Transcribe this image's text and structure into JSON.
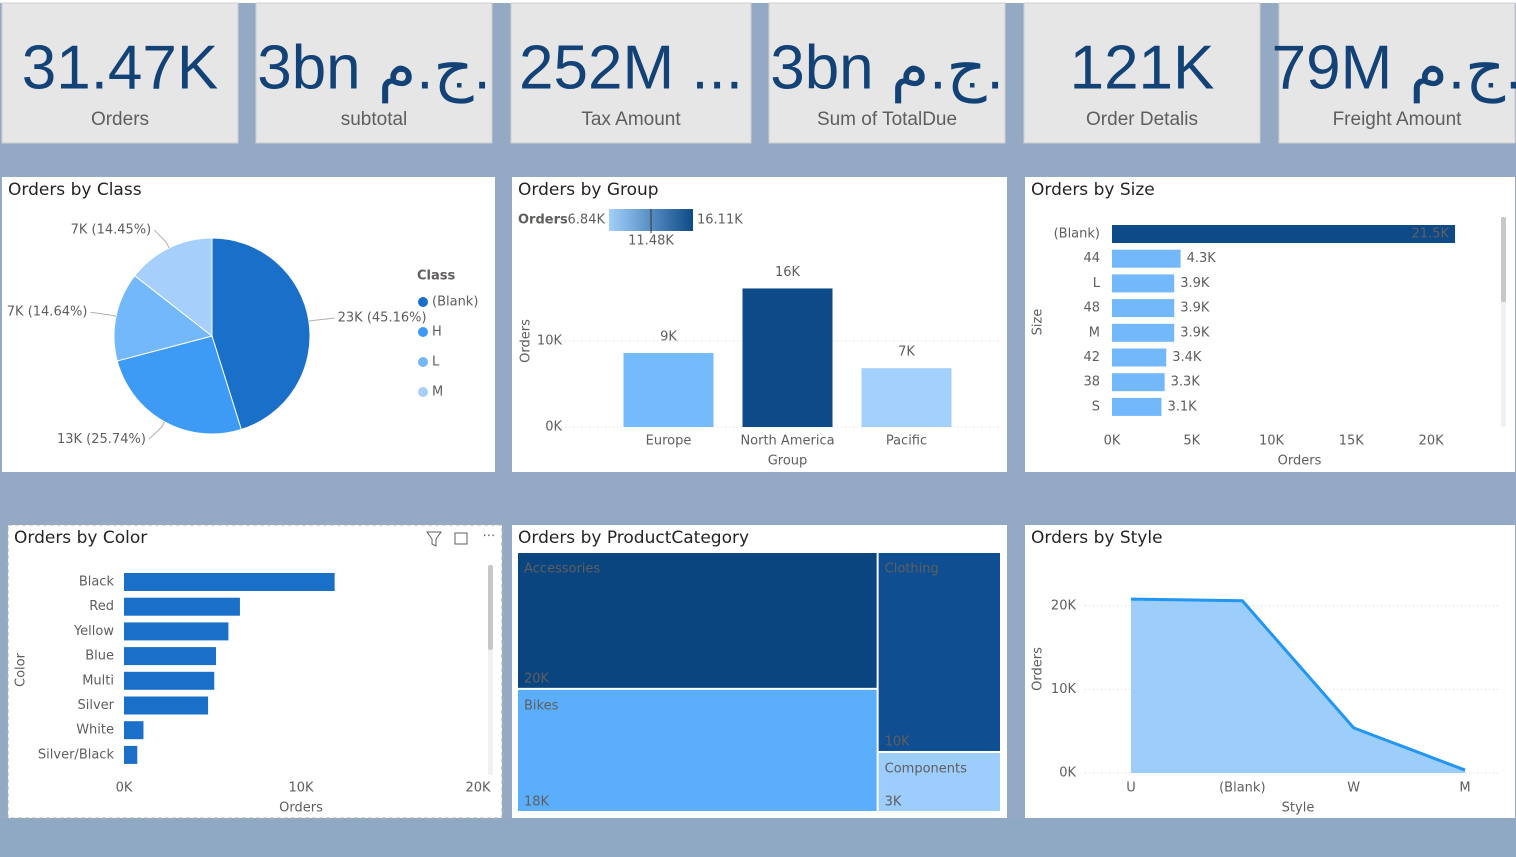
{
  "cards": [
    {
      "value": "31.47K",
      "label": "Orders"
    },
    {
      "value": "3bn ج.م.",
      "label": "subtotal"
    },
    {
      "value": "252M ...",
      "label": "Tax Amount"
    },
    {
      "value": "3bn ج.م.",
      "label": "Sum of TotalDue"
    },
    {
      "value": "121K",
      "label": "Order Detalis"
    },
    {
      "value": "79M ج.م.",
      "label": "Freight Amount"
    }
  ],
  "chart_data": [
    {
      "type": "pie",
      "title": "Orders by Class",
      "legend_title": "Class",
      "categories": [
        "(Blank)",
        "H",
        "L",
        "M"
      ],
      "values": [
        45.16,
        25.74,
        14.64,
        14.45
      ],
      "value_labels": [
        "23K (45.16%)",
        "13K (25.74%)",
        "7K (14.64%)",
        "7K (14.45%)"
      ],
      "colors": [
        "#1a6fc9",
        "#3d9bf5",
        "#72b8fb",
        "#a6d0fb"
      ]
    },
    {
      "type": "bar",
      "title": "Orders by Group",
      "x_label": "Group",
      "y_label": "Orders",
      "categories": [
        "Europe",
        "North America",
        "Pacific"
      ],
      "values": [
        8600,
        16110,
        6840
      ],
      "value_labels": [
        "9K",
        "16K",
        "7K"
      ],
      "colors": [
        "#74bafc",
        "#0d4a87",
        "#a3d0fc"
      ],
      "ylim": [
        0,
        20000
      ],
      "yticks": [
        {
          "value": 0,
          "label": "0K"
        },
        {
          "value": 10000,
          "label": "10K"
        }
      ],
      "grid": true,
      "color_scale": {
        "title": "Orders",
        "min": {
          "value": 6840,
          "label": "6.84K"
        },
        "mid": {
          "value": 11480,
          "label": "11.48K"
        },
        "max": {
          "value": 16110,
          "label": "16.11K"
        },
        "colors": [
          "#a3d0fc",
          "#0d4a87"
        ]
      }
    },
    {
      "type": "hbar",
      "title": "Orders by Size",
      "x_label": "Orders",
      "y_label": "Size",
      "categories": [
        "(Blank)",
        "44",
        "L",
        "48",
        "M",
        "42",
        "38",
        "S"
      ],
      "values": [
        21500,
        4300,
        3900,
        3900,
        3900,
        3400,
        3300,
        3100
      ],
      "value_labels": [
        "21.5K",
        "4.3K",
        "3.9K",
        "3.9K",
        "3.9K",
        "3.4K",
        "3.3K",
        "3.1K"
      ],
      "colors": [
        "#0d4a87",
        "#72b8fb",
        "#72b8fb",
        "#72b8fb",
        "#72b8fb",
        "#72b8fb",
        "#72b8fb",
        "#72b8fb"
      ],
      "xlim": [
        0,
        22000
      ],
      "xticks": [
        {
          "value": 0,
          "label": "0K"
        },
        {
          "value": 5000,
          "label": "5K"
        },
        {
          "value": 10000,
          "label": "10K"
        },
        {
          "value": 15000,
          "label": "15K"
        },
        {
          "value": 20000,
          "label": "20K"
        }
      ],
      "grid": false
    },
    {
      "type": "hbar",
      "title": "Orders by Color",
      "x_label": "Orders",
      "y_label": "Color",
      "categories": [
        "Black",
        "Red",
        "Yellow",
        "Blue",
        "Multi",
        "Silver",
        "White",
        "Silver/Black"
      ],
      "values": [
        11900,
        6550,
        5900,
        5200,
        5100,
        4750,
        1100,
        750
      ],
      "color": "#1a6fc9",
      "xlim": [
        0,
        20000
      ],
      "xticks": [
        {
          "value": 0,
          "label": "0K"
        },
        {
          "value": 10000,
          "label": "10K"
        },
        {
          "value": 20000,
          "label": "20K"
        }
      ],
      "grid": false
    },
    {
      "type": "treemap",
      "title": "Orders by ProductCategory",
      "categories": [
        "Accessories",
        "Bikes",
        "Clothing",
        "Components"
      ],
      "values": [
        20000,
        18000,
        10000,
        3000
      ],
      "value_labels": [
        "20K",
        "18K",
        "10K",
        "3K"
      ],
      "colors": [
        "#0b4580",
        "#5aaefc",
        "#0f4f91",
        "#9ccdfc"
      ]
    },
    {
      "type": "area",
      "title": "Orders by Style",
      "x_label": "Style",
      "y_label": "Orders",
      "categories": [
        "U",
        "(Blank)",
        "W",
        "M"
      ],
      "values": [
        20800,
        20600,
        5400,
        350
      ],
      "color": "#2196f3",
      "fill": "#9dcdfa",
      "ylim": [
        0,
        25000
      ],
      "yticks": [
        {
          "value": 0,
          "label": "0K"
        },
        {
          "value": 10000,
          "label": "10K"
        },
        {
          "value": 20000,
          "label": "20K"
        }
      ],
      "grid": true
    }
  ]
}
